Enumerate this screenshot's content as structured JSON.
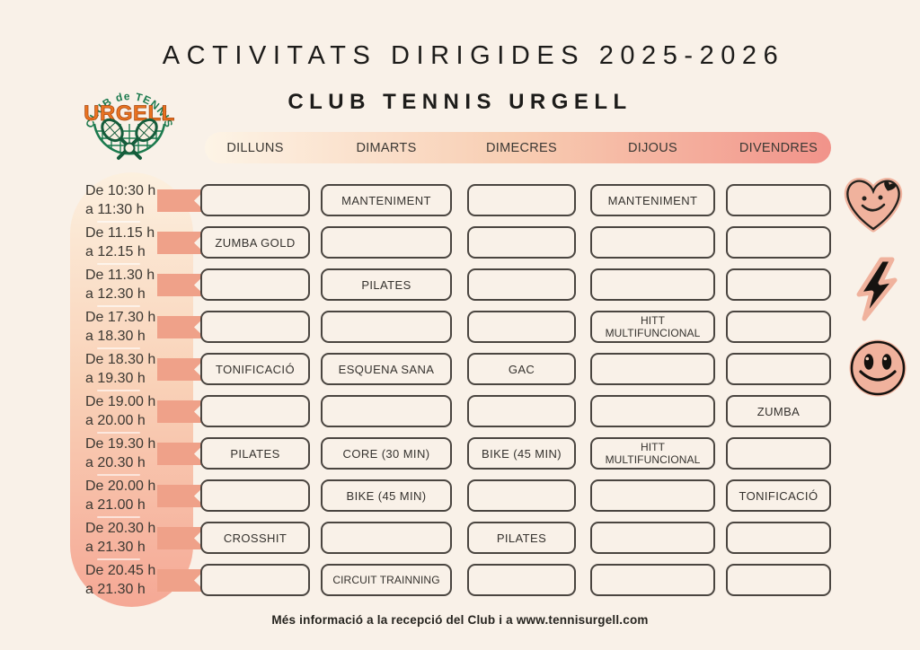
{
  "title": "ACTIVITATS DIRIGIDES 2025-2026",
  "subtitle": "CLUB TENNIS URGELL",
  "footer": "Més informació a la recepció del Club i a www.tennisurgell.com",
  "logo": {
    "arc_text": "CLUB de TENNIS",
    "name": "URGELL"
  },
  "days": [
    "DILLUNS",
    "DIMARTS",
    "DIMECRES",
    "DIJOUS",
    "DIVENDRES"
  ],
  "schedule": [
    {
      "from": "De 10:30 h",
      "to": "a 11:30 h",
      "cells": [
        "",
        "MANTENIMENT",
        "",
        "MANTENIMENT",
        ""
      ]
    },
    {
      "from": "De 11.15 h",
      "to": "a 12.15 h",
      "cells": [
        "ZUMBA GOLD",
        "",
        "",
        "",
        ""
      ]
    },
    {
      "from": "De 11.30 h",
      "to": "a 12.30 h",
      "cells": [
        "",
        "PILATES",
        "",
        "",
        ""
      ]
    },
    {
      "from": "De 17.30 h",
      "to": "a 18.30 h",
      "cells": [
        "",
        "",
        "",
        "HITT MULTIFUNCIONAL",
        ""
      ]
    },
    {
      "from": "De 18.30 h",
      "to": "a 19.30 h",
      "cells": [
        "TONIFICACIÓ",
        "ESQUENA SANA",
        "GAC",
        "",
        ""
      ]
    },
    {
      "from": "De 19.00 h",
      "to": "a 20.00 h",
      "cells": [
        "",
        "",
        "",
        "",
        "ZUMBA"
      ]
    },
    {
      "from": "De 19.30 h",
      "to": "a 20.30 h",
      "cells": [
        "PILATES",
        "CORE (30 MIN)",
        "BIKE (45 MIN)",
        "HITT MULTIFUNCIONAL",
        ""
      ]
    },
    {
      "from": "De 20.00 h",
      "to": "a 21.00 h",
      "cells": [
        "",
        "BIKE (45 MIN)",
        "",
        "",
        "TONIFICACIÓ"
      ]
    },
    {
      "from": "De 20.30 h",
      "to": "a 21.30 h",
      "cells": [
        "CROSSHIT",
        "",
        "PILATES",
        "",
        ""
      ]
    },
    {
      "from": "De 20.45 h",
      "to": "a 21.30 h",
      "cells": [
        "",
        "CIRCUIT TRAINNING",
        "",
        "",
        ""
      ]
    }
  ],
  "stickers": [
    "heart-smiley",
    "lightning-bolt",
    "smiley-face"
  ],
  "colors": {
    "background": "#f9f1e8",
    "salmon_ribbon": "#efa189",
    "header_gradient_start": "#fdf4e6",
    "header_gradient_end": "#f1938a",
    "time_column_top": "#fcf0df",
    "time_column_bottom": "#f5a895",
    "cell_border": "#4a4540",
    "ink": "#1d1c1a",
    "logo_green": "#1c7a4e",
    "logo_orange": "#e97320",
    "sticker_peach": "#f0b29d"
  }
}
